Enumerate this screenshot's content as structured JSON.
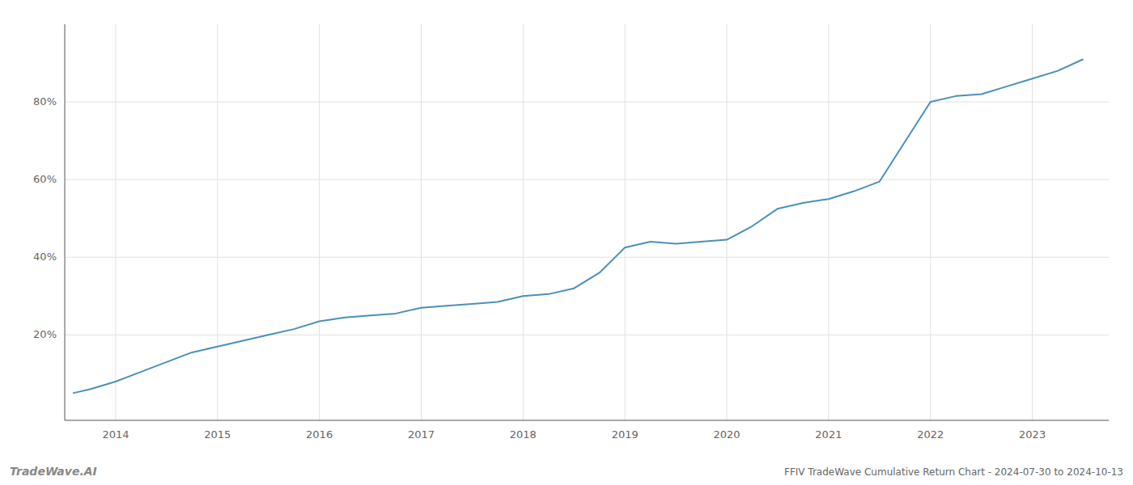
{
  "chart_data": {
    "type": "line",
    "title": "FFIV TradeWave Cumulative Return Chart - 2024-07-30 to 2024-10-13",
    "annotations": [
      "TradeWave.AI"
    ],
    "x": [
      2013.58,
      2013.75,
      2014.0,
      2014.2,
      2014.5,
      2014.75,
      2015.0,
      2015.25,
      2015.5,
      2015.75,
      2016.0,
      2016.25,
      2016.5,
      2016.75,
      2017.0,
      2017.25,
      2017.5,
      2017.75,
      2018.0,
      2018.25,
      2018.5,
      2018.75,
      2019.0,
      2019.25,
      2019.5,
      2019.75,
      2020.0,
      2020.25,
      2020.5,
      2020.75,
      2021.0,
      2021.25,
      2021.5,
      2022.0,
      2022.25,
      2022.5,
      2022.75,
      2023.0,
      2023.25,
      2023.5
    ],
    "values": [
      0.05,
      0.06,
      0.08,
      0.1,
      0.13,
      0.155,
      0.17,
      0.185,
      0.2,
      0.215,
      0.235,
      0.245,
      0.25,
      0.255,
      0.27,
      0.275,
      0.28,
      0.285,
      0.3,
      0.305,
      0.32,
      0.36,
      0.425,
      0.44,
      0.435,
      0.44,
      0.445,
      0.48,
      0.525,
      0.54,
      0.55,
      0.57,
      0.595,
      0.8,
      0.815,
      0.82,
      0.84,
      0.86,
      0.88,
      0.91
    ],
    "color": "#4a90b8",
    "xlim": [
      2013.5,
      2023.75
    ],
    "xticks": [
      2014,
      2015,
      2016,
      2017,
      2018,
      2019,
      2020,
      2021,
      2022,
      2023
    ],
    "ylim": [
      -0.02,
      1.0
    ],
    "yticks": [
      {
        "value": 0.2,
        "label": "20%"
      },
      {
        "value": 0.4,
        "label": "40%"
      },
      {
        "value": 0.6,
        "label": "60%"
      },
      {
        "value": 0.8,
        "label": "80%"
      }
    ],
    "grid": true
  }
}
